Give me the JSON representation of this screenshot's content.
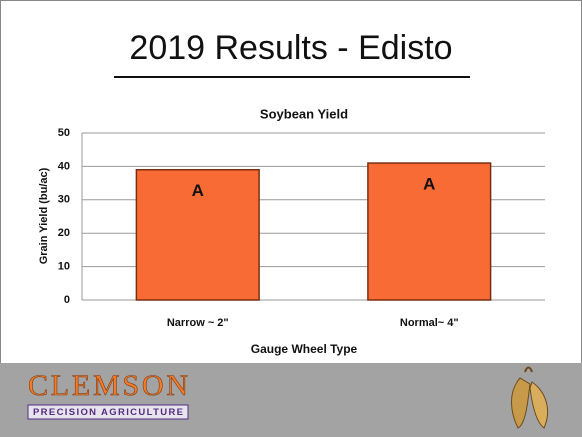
{
  "slide": {
    "title": "2019 Results - Edisto"
  },
  "chart_data": {
    "type": "bar",
    "title": "Soybean Yield",
    "categories": [
      "Narrow ~ 2\"",
      "Normal~ 4\""
    ],
    "values": [
      39,
      41
    ],
    "annotations": [
      "A",
      "A"
    ],
    "color": "#f96b35",
    "xlabel": "Gauge Wheel Type",
    "ylabel": "Grain Yield (bu/ac)",
    "ylim": [
      0,
      50
    ],
    "yticks": [
      0,
      10,
      20,
      30,
      40,
      50
    ],
    "grid": true
  },
  "footer": {
    "logo": "CLEMSON",
    "subtitle": "PRECISION AGRICULTURE"
  }
}
